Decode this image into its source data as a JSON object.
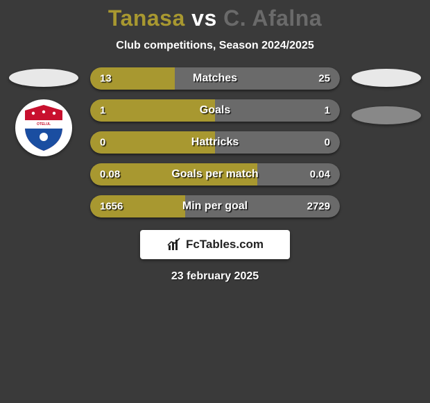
{
  "header": {
    "player1": "Tanasa",
    "vs": "vs",
    "player2": "C. Afalna",
    "player1_color": "#a89830",
    "player2_color": "#6a6a6a",
    "subtitle": "Club competitions, Season 2024/2025"
  },
  "sides": {
    "left_ellipse_color": "#e8e8e8",
    "right_ellipse_color": "#e8e8e8",
    "right_ellipse2_color": "#888888",
    "club_badge": {
      "ring_color": "#ffffff",
      "shield_top": "#c8102e",
      "shield_mid": "#ffffff",
      "shield_low": "#1a4ea1",
      "text": "F.C. OTELUL GALATI"
    }
  },
  "bars": {
    "fill_color": "#a89830",
    "base_color": "#6a6a6a",
    "label_fontsize": 16,
    "value_fontsize": 15,
    "height": 32,
    "radius": 16,
    "items": [
      {
        "label": "Matches",
        "left": "13",
        "right": "25",
        "left_pct": 34,
        "right_pct": 66
      },
      {
        "label": "Goals",
        "left": "1",
        "right": "1",
        "left_pct": 50,
        "right_pct": 50
      },
      {
        "label": "Hattricks",
        "left": "0",
        "right": "0",
        "left_pct": 50,
        "right_pct": 50
      },
      {
        "label": "Goals per match",
        "left": "0.08",
        "right": "0.04",
        "left_pct": 67,
        "right_pct": 33
      },
      {
        "label": "Min per goal",
        "left": "1656",
        "right": "2729",
        "left_pct": 38,
        "right_pct": 62
      }
    ]
  },
  "footer": {
    "brand": "FcTables.com",
    "brand_icon_color": "#222222",
    "date": "23 february 2025"
  }
}
